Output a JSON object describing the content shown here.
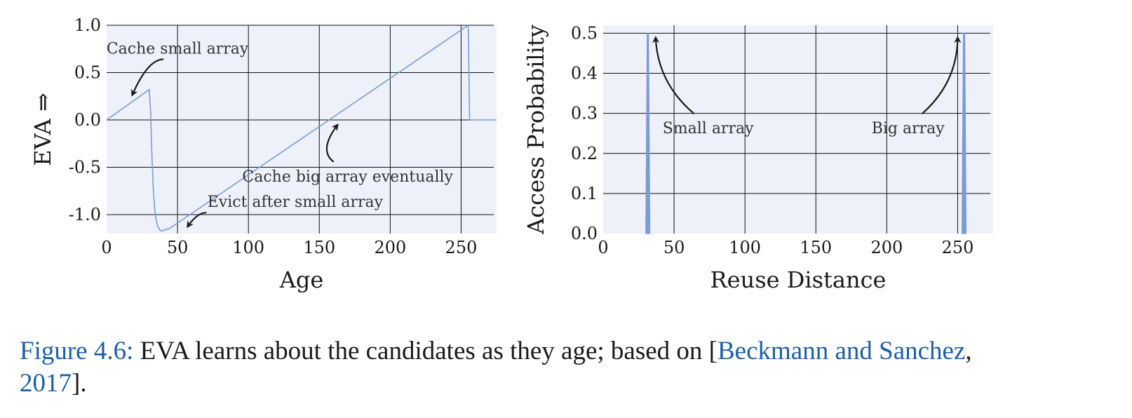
{
  "chart_data": [
    {
      "type": "line",
      "xlabel": "Age",
      "ylabel": "EVA ⇒",
      "xlim": [
        0,
        275
      ],
      "ylim": [
        -1.2,
        1.0
      ],
      "xticks": [
        0,
        50,
        100,
        150,
        200,
        250
      ],
      "yticks": [
        1.0,
        0.5,
        0.0,
        -0.5,
        -1.0
      ],
      "ytick_labels": [
        "1.0",
        "0.5",
        "0.0",
        "-0.5",
        "-1.0"
      ],
      "grid": true,
      "series_color": "#7a9bd6",
      "background_color": "#eef1f9",
      "series": [
        {
          "x": [
            0,
            30,
            31,
            32,
            33,
            34,
            35,
            36,
            37,
            38,
            39,
            40,
            41,
            42,
            43,
            44,
            45,
            255,
            256,
            275
          ],
          "y": [
            0.0,
            0.32,
            0.1,
            -0.4,
            -0.75,
            -0.95,
            -1.06,
            -1.12,
            -1.15,
            -1.17,
            -1.17,
            -1.17,
            -1.16,
            -1.16,
            -1.15,
            -1.15,
            -1.14,
            1.0,
            0.0,
            0.0
          ]
        }
      ],
      "annotations": [
        {
          "text": "Cache small array",
          "x": 50,
          "y": 0.7,
          "arrow_to": [
            18,
            0.26
          ]
        },
        {
          "text": "Cache big array eventually",
          "x": 170,
          "y": -0.65,
          "arrow_to": [
            163,
            -0.05
          ]
        },
        {
          "text": "Evict after small array",
          "x": 133,
          "y": -0.92,
          "arrow_to": [
            57,
            -1.13
          ]
        }
      ]
    },
    {
      "type": "area",
      "xlabel": "Reuse Distance",
      "ylabel": "Access Probability",
      "xlim": [
        0,
        275
      ],
      "ylim": [
        0.0,
        0.52
      ],
      "xticks": [
        0,
        50,
        100,
        150,
        200,
        250
      ],
      "yticks": [
        0.0,
        0.1,
        0.2,
        0.3,
        0.4,
        0.5
      ],
      "ytick_labels": [
        "0.0",
        "0.1",
        "0.2",
        "0.3",
        "0.4",
        "0.5"
      ],
      "grid": true,
      "series_color": "#7a9bd6",
      "background_color": "#eef1f9",
      "series": [
        {
          "x": [
            30,
            31,
            32,
            33
          ],
          "y": [
            0.0,
            0.5,
            0.5,
            0.0
          ]
        },
        {
          "x": [
            253,
            254,
            255,
            256
          ],
          "y": [
            0.0,
            0.5,
            0.5,
            0.0
          ]
        }
      ],
      "annotations": [
        {
          "text": "Small array",
          "x": 74,
          "y": 0.25,
          "arrow_to": [
            37,
            0.49
          ]
        },
        {
          "text": "Big array",
          "x": 215,
          "y": 0.25,
          "arrow_to": [
            250,
            0.49
          ]
        }
      ]
    }
  ],
  "caption": {
    "label": "Figure 4.6:",
    "text": " EVA learns about the candidates as they age; based on [",
    "ref_authors": "Beckmann and Sanchez",
    "comma": ",",
    "ref_year": "2017",
    "end": "]."
  }
}
